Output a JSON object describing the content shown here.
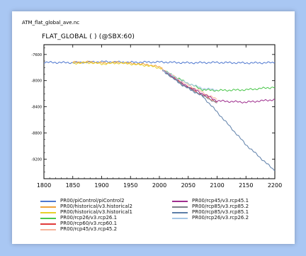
{
  "file_title": "ATM_flat_global_ave.nc",
  "plot_title": "FLAT_GLOBAL ( ) (@SBX:60)",
  "chart_data": {
    "type": "line",
    "title": "FLAT_GLOBAL ( ) (@SBX:60)",
    "xlim": [
      1800,
      2200
    ],
    "ylim": [
      -9500,
      -7450
    ],
    "x_ticks": [
      1800,
      1850,
      1900,
      1950,
      2000,
      2050,
      2100,
      2150,
      2200
    ],
    "y_ticks": [
      -7600,
      -8000,
      -8400,
      -8800,
      -9200,
      -9600
    ],
    "grid": false,
    "legend_placement": "bottom",
    "series": [
      {
        "name": "PR00/piControl/piControl2",
        "color": "#4f78d0",
        "x": [
          1800,
          1850,
          1900,
          1950,
          2000,
          2050,
          2100,
          2150,
          2200
        ],
        "y": [
          -7720,
          -7725,
          -7710,
          -7720,
          -7715,
          -7728,
          -7722,
          -7730,
          -7725
        ]
      },
      {
        "name": "PR00/historical/v3.historical2",
        "color": "#f0a23a",
        "x": [
          1850,
          1880,
          1900,
          1930,
          1950,
          1980,
          2005
        ],
        "y": [
          -7720,
          -7715,
          -7730,
          -7720,
          -7735,
          -7755,
          -7800
        ]
      },
      {
        "name": "PR00/historical/v3.historical1",
        "color": "#e8d02a",
        "x": [
          1850,
          1880,
          1900,
          1930,
          1950,
          1980,
          2005
        ],
        "y": [
          -7735,
          -7725,
          -7745,
          -7730,
          -7745,
          -7770,
          -7815
        ]
      },
      {
        "name": "PR00/rcp26/v3.rcp26.1",
        "color": "#49c64a",
        "x": [
          2005,
          2040,
          2075,
          2100,
          2150,
          2200
        ],
        "y": [
          -7830,
          -8000,
          -8140,
          -8150,
          -8140,
          -8100
        ]
      },
      {
        "name": "PR00/rcp60/v3.rcp60.1",
        "color": "#e03a3a",
        "x": [
          2005,
          2040,
          2070,
          2100
        ],
        "y": [
          -7830,
          -8050,
          -8200,
          -8330
        ]
      },
      {
        "name": "PR00/rcp45/v3.rcp45.2",
        "color": "#f7b49c",
        "x": [
          2005,
          2040,
          2075,
          2100
        ],
        "y": [
          -7820,
          -8020,
          -8180,
          -8290
        ]
      },
      {
        "name": "PR00/rcp45/v3.rcp45.1",
        "color": "#9e2f8e",
        "x": [
          2005,
          2040,
          2075,
          2100,
          2150,
          2200
        ],
        "y": [
          -7830,
          -8050,
          -8200,
          -8310,
          -8330,
          -8290
        ]
      },
      {
        "name": "PR00/rcp85/v3.rcp85.2",
        "color": "#7c8088",
        "x": [
          2005,
          2040,
          2075,
          2100
        ],
        "y": [
          -7840,
          -8060,
          -8230,
          -8340
        ]
      },
      {
        "name": "PR00/rcp85/v3.rcp85.1",
        "color": "#5c7ea8",
        "x": [
          2005,
          2040,
          2075,
          2100,
          2150,
          2200
        ],
        "y": [
          -7840,
          -8070,
          -8240,
          -8480,
          -8980,
          -9380
        ]
      },
      {
        "name": "PR00/rcp26/v3.rcp26.2",
        "color": "#a7c7e6",
        "x": [
          2005,
          2040,
          2075,
          2100
        ],
        "y": [
          -7835,
          -8010,
          -8120,
          -8140
        ]
      }
    ]
  },
  "legend": {
    "left": [
      {
        "label": "PR00/piControl/piControl2",
        "color": "#4f78d0"
      },
      {
        "label": "PR00/historical/v3.historical2",
        "color": "#f0a23a"
      },
      {
        "label": "PR00/historical/v3.historical1",
        "color": "#e8d02a"
      },
      {
        "label": "PR00/rcp26/v3.rcp26.1",
        "color": "#49c64a"
      },
      {
        "label": "PR00/rcp60/v3.rcp60.1",
        "color": "#e03a3a"
      },
      {
        "label": "PR00/rcp45/v3.rcp45.2",
        "color": "#f7b49c"
      }
    ],
    "right": [
      {
        "label": "PR00/rcp45/v3.rcp45.1",
        "color": "#9e2f8e"
      },
      {
        "label": "PR00/rcp85/v3.rcp85.2",
        "color": "#7c8088"
      },
      {
        "label": "PR00/rcp85/v3.rcp85.1",
        "color": "#5c7ea8"
      },
      {
        "label": "PR00/rcp26/v3.rcp26.2",
        "color": "#a7c7e6"
      }
    ]
  }
}
